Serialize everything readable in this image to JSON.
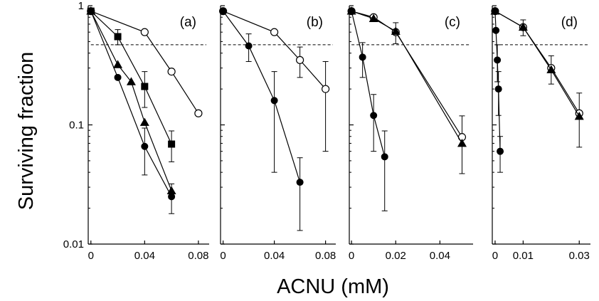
{
  "figure": {
    "ylabel": "Surviving fraction",
    "xlabel": "ACNU (mM)"
  },
  "chart_data": [
    {
      "type": "line",
      "panel_label": "(a)",
      "yscale": "log",
      "ylim": [
        0.01,
        1
      ],
      "xlim": [
        -0.002,
        0.088
      ],
      "xticks": [
        {
          "value": 0,
          "label": "0"
        },
        {
          "value": 0.04,
          "label": "0.04"
        },
        {
          "value": 0.08,
          "label": "0.08"
        }
      ],
      "yticks": [
        {
          "value": 1,
          "label": "1"
        },
        {
          "value": 0.1,
          "label": "0.1"
        },
        {
          "value": 0.01,
          "label": "0.01"
        }
      ],
      "reference_line": {
        "y": 0.47,
        "style": "dashed"
      },
      "series": [
        {
          "marker": "open-circle",
          "x": [
            0,
            0.04,
            0.06,
            0.08
          ],
          "y": [
            0.9,
            0.6,
            0.28,
            0.125
          ],
          "err": [
            0,
            0,
            0,
            0
          ]
        },
        {
          "marker": "filled-square",
          "x": [
            0,
            0.02,
            0.04,
            0.06
          ],
          "y": [
            0.9,
            0.55,
            0.21,
            0.069
          ],
          "err": [
            0,
            0.08,
            0.07,
            0.02
          ]
        },
        {
          "marker": "filled-triangle",
          "x": [
            0,
            0.02,
            0.03,
            0.04,
            0.06
          ],
          "y": [
            0.9,
            0.32,
            0.23,
            0.105,
            0.028
          ],
          "err": [
            0,
            0,
            0,
            0,
            0
          ]
        },
        {
          "marker": "filled-circle",
          "x": [
            0,
            0.02,
            0.04,
            0.06
          ],
          "y": [
            0.9,
            0.25,
            0.066,
            0.025
          ],
          "err": [
            0,
            0,
            0.028,
            0.007
          ]
        }
      ]
    },
    {
      "type": "line",
      "panel_label": "(b)",
      "yscale": "log",
      "ylim": [
        0.01,
        1
      ],
      "xlim": [
        -0.002,
        0.088
      ],
      "xticks": [
        {
          "value": 0,
          "label": "0"
        },
        {
          "value": 0.04,
          "label": "0.04"
        },
        {
          "value": 0.08,
          "label": "0.08"
        }
      ],
      "reference_line": {
        "y": 0.47,
        "style": "dashed"
      },
      "series": [
        {
          "marker": "open-circle",
          "x": [
            0,
            0.04,
            0.06,
            0.08
          ],
          "y": [
            0.9,
            0.6,
            0.35,
            0.2
          ],
          "err": [
            0,
            0,
            0.1,
            0.14
          ]
        },
        {
          "marker": "filled-circle",
          "x": [
            0,
            0.02,
            0.04,
            0.06
          ],
          "y": [
            0.9,
            0.46,
            0.16,
            0.033
          ],
          "err": [
            0,
            0.12,
            0.12,
            0.02
          ]
        }
      ]
    },
    {
      "type": "line",
      "panel_label": "(c)",
      "yscale": "log",
      "ylim": [
        0.01,
        1
      ],
      "xlim": [
        -0.001,
        0.055
      ],
      "xticks": [
        {
          "value": 0,
          "label": "0"
        },
        {
          "value": 0.02,
          "label": "0.02"
        },
        {
          "value": 0.04,
          "label": "0.04"
        }
      ],
      "reference_line": {
        "y": 0.47,
        "style": "dashed"
      },
      "series": [
        {
          "marker": "open-circle",
          "x": [
            0,
            0.01,
            0.02,
            0.05
          ],
          "y": [
            0.9,
            0.8,
            0.6,
            0.079
          ],
          "err": [
            0,
            0,
            0.12,
            0.04
          ]
        },
        {
          "marker": "filled-triangle",
          "x": [
            0,
            0.01,
            0.02,
            0.05
          ],
          "y": [
            0.9,
            0.78,
            0.61,
            0.07
          ],
          "err": [
            0,
            0,
            0,
            0
          ]
        },
        {
          "marker": "filled-circle",
          "x": [
            0,
            0.005,
            0.01,
            0.015
          ],
          "y": [
            0.9,
            0.37,
            0.12,
            0.054
          ],
          "err": [
            0,
            0.12,
            0.06,
            0.035
          ]
        }
      ]
    },
    {
      "type": "line",
      "panel_label": "(d)",
      "yscale": "log",
      "ylim": [
        0.01,
        1
      ],
      "xlim": [
        -0.001,
        0.034
      ],
      "xticks": [
        {
          "value": 0,
          "label": "0"
        },
        {
          "value": 0.01,
          "label": "0.01"
        },
        {
          "value": 0.03,
          "label": "0.03"
        }
      ],
      "reference_line": {
        "y": 0.47,
        "style": "dashed"
      },
      "series": [
        {
          "marker": "open-circle",
          "x": [
            0,
            0.01,
            0.02,
            0.03
          ],
          "y": [
            0.9,
            0.66,
            0.3,
            0.125
          ],
          "err": [
            0,
            0.1,
            0.08,
            0.06
          ]
        },
        {
          "marker": "filled-triangle",
          "x": [
            0,
            0.01,
            0.02,
            0.03
          ],
          "y": [
            0.9,
            0.66,
            0.29,
            0.118
          ],
          "err": [
            0,
            0,
            0,
            0
          ]
        },
        {
          "marker": "filled-circle",
          "x": [
            0,
            0.0003,
            0.0008,
            0.0012,
            0.0018
          ],
          "y": [
            0.9,
            0.62,
            0.35,
            0.2,
            0.06
          ],
          "err": [
            0,
            0,
            0.12,
            0.08,
            0.02
          ]
        }
      ]
    }
  ]
}
